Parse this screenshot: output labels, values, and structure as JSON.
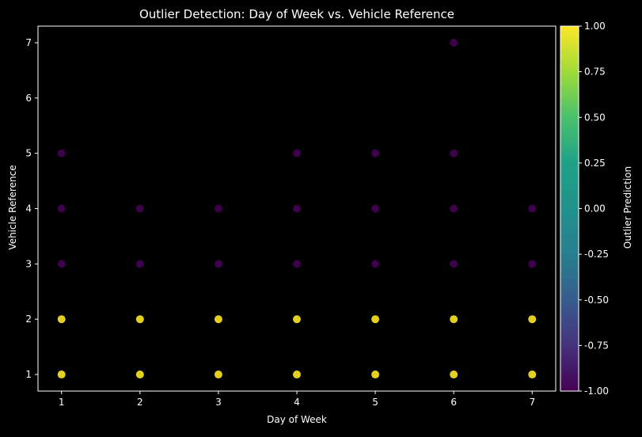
{
  "chart_data": {
    "type": "scatter",
    "title": "Outlier Detection: Day of Week vs. Vehicle Reference",
    "xlabel": "Day of Week",
    "ylabel": "Vehicle Reference",
    "x_ticks": [
      "1",
      "2",
      "3",
      "4",
      "5",
      "6",
      "7"
    ],
    "y_ticks": [
      "1",
      "2",
      "3",
      "4",
      "5",
      "6",
      "7"
    ],
    "xlim": [
      0.7,
      7.3
    ],
    "ylim": [
      0.7,
      7.3
    ],
    "grid": false,
    "colorbar": {
      "label": "Outlier Prediction",
      "range": [
        -1,
        1
      ],
      "ticks": [
        "-1.00",
        "-0.75",
        "-0.50",
        "-0.25",
        "0.00",
        "0.25",
        "0.50",
        "0.75",
        "1.00"
      ],
      "colormap": "viridis"
    },
    "series": [
      {
        "prediction": 1,
        "color": "#fde725",
        "points": [
          [
            1,
            1
          ],
          [
            1,
            2
          ],
          [
            2,
            1
          ],
          [
            2,
            2
          ],
          [
            3,
            1
          ],
          [
            3,
            2
          ],
          [
            4,
            1
          ],
          [
            4,
            2
          ],
          [
            5,
            1
          ],
          [
            5,
            2
          ],
          [
            6,
            1
          ],
          [
            6,
            2
          ],
          [
            7,
            1
          ],
          [
            7,
            2
          ]
        ]
      },
      {
        "prediction": -1,
        "color": "#440154",
        "points": [
          [
            1,
            3
          ],
          [
            1,
            4
          ],
          [
            1,
            5
          ],
          [
            2,
            3
          ],
          [
            2,
            4
          ],
          [
            3,
            3
          ],
          [
            3,
            4
          ],
          [
            4,
            3
          ],
          [
            4,
            4
          ],
          [
            4,
            5
          ],
          [
            5,
            3
          ],
          [
            5,
            4
          ],
          [
            5,
            5
          ],
          [
            6,
            3
          ],
          [
            6,
            4
          ],
          [
            6,
            5
          ],
          [
            6,
            7
          ],
          [
            7,
            3
          ],
          [
            7,
            4
          ]
        ]
      }
    ]
  }
}
